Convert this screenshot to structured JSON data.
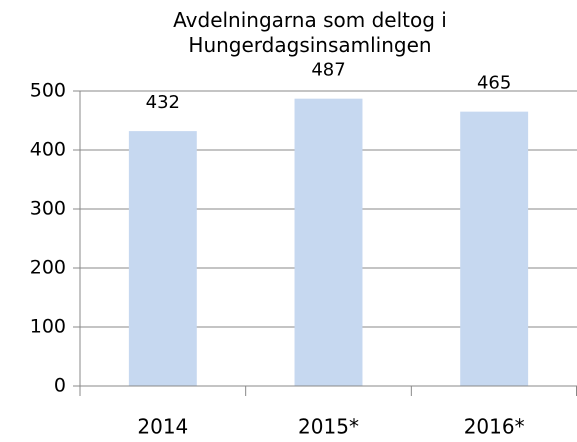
{
  "chart_data": {
    "type": "bar",
    "title": "Avdelningarna som deltog i Hungerdagsinsamlingen",
    "categories": [
      "2014",
      "2015*",
      "2016*"
    ],
    "values": [
      432,
      487,
      465
    ],
    "color": "#c6d8f0",
    "ylim": [
      0,
      500
    ],
    "yticks": [
      0,
      100,
      200,
      300,
      400,
      500
    ],
    "grid": true
  }
}
